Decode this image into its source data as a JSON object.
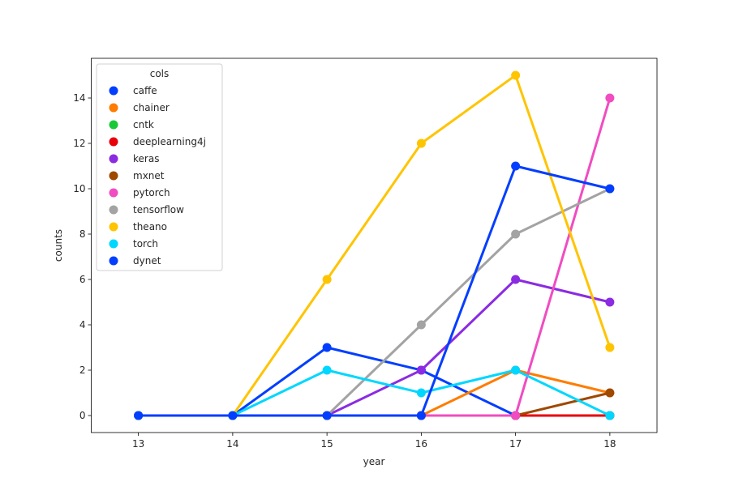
{
  "chart_data": {
    "type": "line",
    "title": "",
    "xlabel": "year",
    "ylabel": "counts",
    "categories": [
      "13",
      "14",
      "15",
      "16",
      "17",
      "18"
    ],
    "ylim": [
      -0.75,
      15.75
    ],
    "yticks": [
      0,
      2,
      4,
      6,
      8,
      10,
      12,
      14
    ],
    "grid": false,
    "legend": {
      "title": "cols",
      "placement": "top-left"
    },
    "series": [
      {
        "name": "caffe",
        "color": "#023eff",
        "values": [
          0,
          0,
          3,
          2,
          0,
          0
        ]
      },
      {
        "name": "chainer",
        "color": "#ff7c00",
        "values": [
          0,
          0,
          0,
          0,
          2,
          1
        ]
      },
      {
        "name": "cntk",
        "color": "#1ac938",
        "values": [
          0,
          0,
          0,
          0,
          0,
          0
        ]
      },
      {
        "name": "deeplearning4j",
        "color": "#e8000b",
        "values": [
          0,
          0,
          0,
          0,
          0,
          0
        ]
      },
      {
        "name": "keras",
        "color": "#8b2be2",
        "values": [
          0,
          0,
          0,
          2,
          6,
          5
        ]
      },
      {
        "name": "mxnet",
        "color": "#9f4800",
        "values": [
          0,
          0,
          0,
          0,
          0,
          1
        ]
      },
      {
        "name": "pytorch",
        "color": "#f14cc1",
        "values": [
          0,
          0,
          0,
          0,
          0,
          14
        ]
      },
      {
        "name": "tensorflow",
        "color": "#a3a3a3",
        "values": [
          0,
          0,
          0,
          4,
          8,
          10
        ]
      },
      {
        "name": "theano",
        "color": "#ffc400",
        "values": [
          0,
          0,
          6,
          12,
          15,
          3
        ]
      },
      {
        "name": "torch",
        "color": "#00d7ff",
        "values": [
          0,
          0,
          2,
          1,
          2,
          0
        ]
      },
      {
        "name": "dynet",
        "color": "#023eff",
        "values": [
          0,
          0,
          0,
          0,
          11,
          10
        ]
      }
    ]
  }
}
